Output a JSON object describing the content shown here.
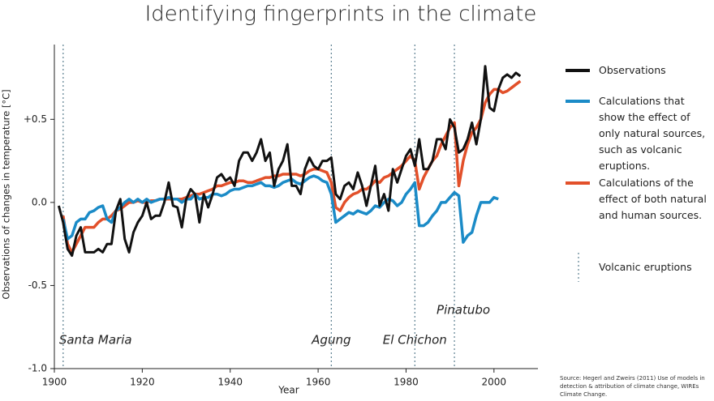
{
  "chart_data": {
    "type": "line",
    "title": "Identifying fingerprints in the climate",
    "x_label": "Year",
    "y_label": "Observations of changes in temperature [°C]",
    "xlim": [
      1900,
      2010
    ],
    "xticks": [
      1900,
      1920,
      1940,
      1960,
      1980,
      2000
    ],
    "ylim": [
      -1,
      0.95
    ],
    "yticks": [
      {
        "value": -1,
        "label": "-1.0"
      },
      -0.5,
      {
        "value": 0,
        "label": "0.0"
      },
      {
        "value": 0.5,
        "label": "+0.5"
      }
    ],
    "grid": false,
    "x": [
      1901,
      1902,
      1903,
      1904,
      1905,
      1906,
      1907,
      1908,
      1909,
      1910,
      1911,
      1912,
      1913,
      1914,
      1915,
      1916,
      1917,
      1918,
      1919,
      1920,
      1921,
      1922,
      1923,
      1924,
      1925,
      1926,
      1927,
      1928,
      1929,
      1930,
      1931,
      1932,
      1933,
      1934,
      1935,
      1936,
      1937,
      1938,
      1939,
      1940,
      1941,
      1942,
      1943,
      1944,
      1945,
      1946,
      1947,
      1948,
      1949,
      1950,
      1951,
      1952,
      1953,
      1954,
      1955,
      1956,
      1957,
      1958,
      1959,
      1960,
      1961,
      1962,
      1963,
      1964,
      1965,
      1966,
      1967,
      1968,
      1969,
      1970,
      1971,
      1972,
      1973,
      1974,
      1975,
      1976,
      1977,
      1978,
      1979,
      1980,
      1981,
      1982,
      1983,
      1984,
      1985,
      1986,
      1987,
      1988,
      1989,
      1990,
      1991,
      1992,
      1993,
      1994,
      1995,
      1996,
      1997,
      1998,
      1999,
      2000,
      2001,
      2002,
      2003,
      2004,
      2005,
      2006
    ],
    "series": [
      {
        "name": "Observations",
        "color": "#111111",
        "values": [
          -0.02,
          -0.12,
          -0.28,
          -0.32,
          -0.2,
          -0.15,
          -0.3,
          -0.3,
          -0.3,
          -0.28,
          -0.3,
          -0.25,
          -0.25,
          -0.05,
          0.02,
          -0.22,
          -0.3,
          -0.18,
          -0.12,
          -0.08,
          0.0,
          -0.1,
          -0.08,
          -0.08,
          0.0,
          0.12,
          -0.02,
          -0.03,
          -0.15,
          0.02,
          0.08,
          0.05,
          -0.12,
          0.05,
          -0.03,
          0.05,
          0.15,
          0.17,
          0.13,
          0.15,
          0.1,
          0.25,
          0.3,
          0.3,
          0.25,
          0.3,
          0.38,
          0.25,
          0.3,
          0.1,
          0.2,
          0.25,
          0.35,
          0.1,
          0.1,
          0.05,
          0.2,
          0.27,
          0.22,
          0.2,
          0.25,
          0.25,
          0.27,
          0.05,
          0.02,
          0.1,
          0.12,
          0.08,
          0.18,
          0.1,
          -0.02,
          0.1,
          0.22,
          -0.02,
          0.05,
          -0.05,
          0.2,
          0.12,
          0.2,
          0.28,
          0.32,
          0.22,
          0.38,
          0.2,
          0.2,
          0.25,
          0.38,
          0.38,
          0.32,
          0.5,
          0.45,
          0.3,
          0.32,
          0.38,
          0.48,
          0.35,
          0.5,
          0.82,
          0.57,
          0.55,
          0.68,
          0.75,
          0.77,
          0.75,
          0.78,
          0.76
        ]
      },
      {
        "name": "Calculations that show the effect of only natural sources, such as volcanic eruptions.",
        "color": "#1b8bc7",
        "values": [
          null,
          -0.1,
          -0.22,
          -0.2,
          -0.12,
          -0.1,
          -0.1,
          -0.06,
          -0.05,
          -0.03,
          -0.02,
          -0.1,
          -0.12,
          -0.05,
          -0.03,
          0.0,
          0.02,
          0.0,
          0.02,
          0.0,
          0.02,
          0.0,
          0.01,
          0.02,
          0.02,
          0.03,
          0.02,
          0.02,
          0.0,
          0.02,
          0.02,
          0.05,
          0.02,
          0.03,
          0.03,
          0.05,
          0.05,
          0.04,
          0.05,
          0.07,
          0.08,
          0.08,
          0.09,
          0.1,
          0.1,
          0.11,
          0.12,
          0.1,
          0.1,
          0.09,
          0.1,
          0.12,
          0.13,
          0.14,
          0.12,
          0.11,
          0.13,
          0.15,
          0.16,
          0.15,
          0.13,
          0.12,
          0.05,
          -0.12,
          -0.1,
          -0.08,
          -0.06,
          -0.07,
          -0.05,
          -0.06,
          -0.07,
          -0.05,
          -0.02,
          -0.03,
          0.0,
          0.02,
          0.01,
          -0.02,
          0.0,
          0.05,
          0.08,
          0.12,
          -0.14,
          -0.14,
          -0.12,
          -0.08,
          -0.05,
          0.0,
          0.0,
          0.03,
          0.06,
          0.04,
          -0.24,
          -0.2,
          -0.18,
          -0.08,
          0.0,
          0.0,
          0.0,
          0.03,
          0.02,
          null,
          null,
          null,
          null,
          null
        ]
      },
      {
        "name": "Calculations of the effect of both natural and human sources.",
        "color": "#e2502a",
        "values": [
          null,
          -0.08,
          -0.25,
          -0.3,
          -0.25,
          -0.2,
          -0.15,
          -0.15,
          -0.15,
          -0.12,
          -0.1,
          -0.1,
          -0.08,
          -0.05,
          -0.04,
          -0.02,
          0.0,
          0.0,
          0.01,
          0.0,
          0.0,
          0.01,
          0.01,
          0.02,
          0.02,
          0.02,
          0.02,
          0.02,
          0.02,
          0.03,
          0.04,
          0.05,
          0.05,
          0.06,
          0.07,
          0.08,
          0.1,
          0.1,
          0.11,
          0.12,
          0.12,
          0.13,
          0.13,
          0.12,
          0.12,
          0.13,
          0.14,
          0.15,
          0.15,
          0.16,
          0.16,
          0.17,
          0.17,
          0.17,
          0.17,
          0.16,
          0.17,
          0.19,
          0.2,
          0.2,
          0.19,
          0.18,
          0.12,
          -0.03,
          -0.05,
          0.0,
          0.03,
          0.05,
          0.06,
          0.08,
          0.08,
          0.1,
          0.13,
          0.12,
          0.15,
          0.16,
          0.18,
          0.2,
          0.22,
          0.25,
          0.28,
          0.25,
          0.08,
          0.15,
          0.2,
          0.25,
          0.28,
          0.35,
          0.4,
          0.45,
          0.48,
          0.1,
          0.25,
          0.35,
          0.42,
          0.45,
          0.5,
          0.6,
          0.65,
          0.68,
          0.68,
          0.66,
          0.67,
          0.69,
          0.71,
          0.73
        ]
      }
    ],
    "eruption_legend": "Volcanic eruptions",
    "eruption_color": "#5b7f90",
    "eruptions": [
      {
        "label": "Santa Maria",
        "x": 1902
      },
      {
        "label": "Agung",
        "x": 1963
      },
      {
        "label": "El Chichon",
        "x": 1982
      },
      {
        "label": "Pinatubo",
        "x": 1991
      }
    ],
    "source": "Source: Hegerl and Zweirs (2011) Use of models in detection & attribution of climate change, WIREs Climate Change."
  }
}
